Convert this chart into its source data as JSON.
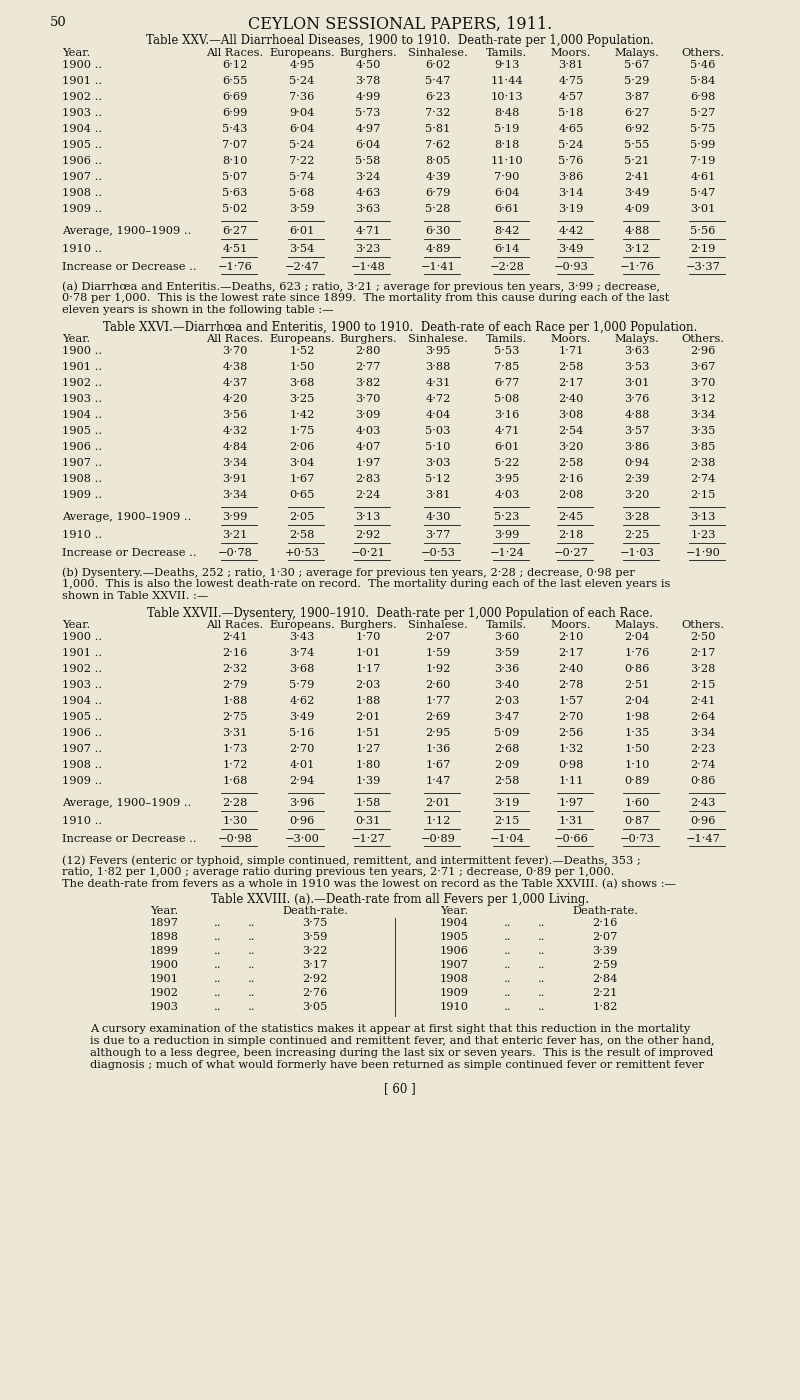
{
  "bg_color": "#ede8d5",
  "text_color": "#111111",
  "page_number": "50",
  "header": "CEYLON SESSIONAL PAPERS, 1911.",
  "table25_title": "Table XXV.—All Diarrhoeal Diseases, 1900 to 1910.  Death-rate per 1,000 Population.",
  "table25_headers": [
    "Year.",
    "All Races.",
    "Europeans.",
    "Burghers.",
    "Sinhalese.",
    "Tamils.",
    "Moors.",
    "Malays.",
    "Others."
  ],
  "table25_rows": [
    [
      "1900 ..",
      "6·12",
      "4·95",
      "4·50",
      "6·02",
      "9·13",
      "3·81",
      "5·67",
      "5·46"
    ],
    [
      "1901 ..",
      "6·55",
      "5·24",
      "3·78",
      "5·47",
      "11·44",
      "4·75",
      "5·29",
      "5·84"
    ],
    [
      "1902 ..",
      "6·69",
      "7·36",
      "4·99",
      "6·23",
      "10·13",
      "4·57",
      "3·87",
      "6·98"
    ],
    [
      "1903 ..",
      "6·99",
      "9·04",
      "5·73",
      "7·32",
      "8·48",
      "5·18",
      "6·27",
      "5·27"
    ],
    [
      "1904 ..",
      "5·43",
      "6·04",
      "4·97",
      "5·81",
      "5·19",
      "4·65",
      "6·92",
      "5·75"
    ],
    [
      "1905 ..",
      "7·07",
      "5·24",
      "6·04",
      "7·62",
      "8·18",
      "5·24",
      "5·55",
      "5·99"
    ],
    [
      "1906 ..",
      "8·10",
      "7·22",
      "5·58",
      "8·05",
      "11·10",
      "5·76",
      "5·21",
      "7·19"
    ],
    [
      "1907 ..",
      "5·07",
      "5·74",
      "3·24",
      "4·39",
      "7·90",
      "3·86",
      "2·41",
      "4·61"
    ],
    [
      "1908 ..",
      "5·63",
      "5·68",
      "4·63",
      "6·79",
      "6·04",
      "3·14",
      "3·49",
      "5·47"
    ],
    [
      "1909 ..",
      "5·02",
      "3·59",
      "3·63",
      "5·28",
      "6·61",
      "3·19",
      "4·09",
      "3·01"
    ]
  ],
  "table25_avg": [
    "Average, 1900–1909 ..",
    "6·27",
    "6·01",
    "4·71",
    "6·30",
    "8·42",
    "4·42",
    "4·88",
    "5·56"
  ],
  "table25_1910": [
    "1910 ..",
    "4·51",
    "3·54",
    "3·23",
    "4·89",
    "6·14",
    "3·49",
    "3·12",
    "2·19"
  ],
  "table25_inc": [
    "Increase or Decrease ..",
    "−1·76",
    "−2·47",
    "−1·48",
    "−1·41",
    "−2·28",
    "−0·93",
    "−1·76",
    "−3·37"
  ],
  "para_a": "(a) Diarrhœa and Enteritis.—Deaths, 623 ; ratio, 3·21 ; average for previous ten years, 3·99 ; decrease,\n0·78 per 1,000.  This is the lowest rate since 1899.  The mortality from this cause during each of the last\neleven years is shown in the following table :—",
  "table26_title": "Table XXVI.—Diarrhœa and Enteritis, 1900 to 1910.  Death-rate of each Race per 1,000 Population.",
  "table26_headers": [
    "Year.",
    "All Races.",
    "Europeans.",
    "Burghers.",
    "Sinhalese.",
    "Tamils.",
    "Moors.",
    "Malays.",
    "Others."
  ],
  "table26_rows": [
    [
      "1900 ..",
      "3·70",
      "1·52",
      "2·80",
      "3·95",
      "5·53",
      "1·71",
      "3·63",
      "2·96"
    ],
    [
      "1901 ..",
      "4·38",
      "1·50",
      "2·77",
      "3·88",
      "7·85",
      "2·58",
      "3·53",
      "3·67"
    ],
    [
      "1902 ..",
      "4·37",
      "3·68",
      "3·82",
      "4·31",
      "6·77",
      "2·17",
      "3·01",
      "3·70"
    ],
    [
      "1903 ..",
      "4·20",
      "3·25",
      "3·70",
      "4·72",
      "5·08",
      "2·40",
      "3·76",
      "3·12"
    ],
    [
      "1904 ..",
      "3·56",
      "1·42",
      "3·09",
      "4·04",
      "3·16",
      "3·08",
      "4·88",
      "3·34"
    ],
    [
      "1905 ..",
      "4·32",
      "1·75",
      "4·03",
      "5·03",
      "4·71",
      "2·54",
      "3·57",
      "3·35"
    ],
    [
      "1906 ..",
      "4·84",
      "2·06",
      "4·07",
      "5·10",
      "6·01",
      "3·20",
      "3·86",
      "3·85"
    ],
    [
      "1907 ..",
      "3·34",
      "3·04",
      "1·97",
      "3·03",
      "5·22",
      "2·58",
      "0·94",
      "2·38"
    ],
    [
      "1908 ..",
      "3·91",
      "1·67",
      "2·83",
      "5·12",
      "3·95",
      "2·16",
      "2·39",
      "2·74"
    ],
    [
      "1909 ..",
      "3·34",
      "0·65",
      "2·24",
      "3·81",
      "4·03",
      "2·08",
      "3·20",
      "2·15"
    ]
  ],
  "table26_avg": [
    "Average, 1900–1909 ..",
    "3·99",
    "2·05",
    "3·13",
    "4·30",
    "5·23",
    "2·45",
    "3·28",
    "3·13"
  ],
  "table26_1910": [
    "1910 ..",
    "3·21",
    "2·58",
    "2·92",
    "3·77",
    "3·99",
    "2·18",
    "2·25",
    "1·23"
  ],
  "table26_inc": [
    "Increase or Decrease ..",
    "−0·78",
    "+0·53",
    "−0·21",
    "−0·53",
    "−1·24",
    "−0·27",
    "−1·03",
    "−1·90"
  ],
  "para_b": "(b) Dysentery.—Deaths, 252 ; ratio, 1·30 ; average for previous ten years, 2·28 ; decrease, 0·98 per\n1,000.  This is also the lowest death-rate on record.  The mortality during each of the last eleven years is\nshown in Table XXVII. :—",
  "table27_title": "Table XXVII.—Dysentery, 1900–1910.  Death-rate per 1,000 Population of each Race.",
  "table27_headers": [
    "Year.",
    "All Races.",
    "Europeans.",
    "Burghers.",
    "Sinhalese.",
    "Tamils.",
    "Moors.",
    "Malays.",
    "Others."
  ],
  "table27_rows": [
    [
      "1900 ..",
      "2·41",
      "3·43",
      "1·70",
      "2·07",
      "3·60",
      "2·10",
      "2·04",
      "2·50"
    ],
    [
      "1901 ..",
      "2·16",
      "3·74",
      "1·01",
      "1·59",
      "3·59",
      "2·17",
      "1·76",
      "2·17"
    ],
    [
      "1902 ..",
      "2·32",
      "3·68",
      "1·17",
      "1·92",
      "3·36",
      "2·40",
      "0·86",
      "3·28"
    ],
    [
      "1903 ..",
      "2·79",
      "5·79",
      "2·03",
      "2·60",
      "3·40",
      "2·78",
      "2·51",
      "2·15"
    ],
    [
      "1904 ..",
      "1·88",
      "4·62",
      "1·88",
      "1·77",
      "2·03",
      "1·57",
      "2·04",
      "2·41"
    ],
    [
      "1905 ..",
      "2·75",
      "3·49",
      "2·01",
      "2·69",
      "3·47",
      "2·70",
      "1·98",
      "2·64"
    ],
    [
      "1906 ..",
      "3·31",
      "5·16",
      "1·51",
      "2·95",
      "5·09",
      "2·56",
      "1·35",
      "3·34"
    ],
    [
      "1907 ..",
      "1·73",
      "2·70",
      "1·27",
      "1·36",
      "2·68",
      "1·32",
      "1·50",
      "2·23"
    ],
    [
      "1908 ..",
      "1·72",
      "4·01",
      "1·80",
      "1·67",
      "2·09",
      "0·98",
      "1·10",
      "2·74"
    ],
    [
      "1909 ..",
      "1·68",
      "2·94",
      "1·39",
      "1·47",
      "2·58",
      "1·11",
      "0·89",
      "0·86"
    ]
  ],
  "table27_avg": [
    "Average, 1900–1909 ..",
    "2·28",
    "3·96",
    "1·58",
    "2·01",
    "3·19",
    "1·97",
    "1·60",
    "2·43"
  ],
  "table27_1910": [
    "1910 ..",
    "1·30",
    "0·96",
    "0·31",
    "1·12",
    "2·15",
    "1·31",
    "0·87",
    "0·96"
  ],
  "table27_inc": [
    "Increase or Decrease ..",
    "−0·98",
    "−3·00",
    "−1·27",
    "−0·89",
    "−1·04",
    "−0·66",
    "−0·73",
    "−1·47"
  ],
  "para_12": "(12) Fevers (enteric or typhoid, simple continued, remittent, and intermittent fever).—Deaths, 353 ;",
  "para_12b": "ratio, 1·82 per 1,000 ; average ratio during previous ten years, 2·71 ; decrease, 0·89 per 1,000.",
  "para_12c": "The death-rate from fevers as a whole in 1910 was the lowest on record as the Table XXVIII. (a) shows :—",
  "table28_title": "Table XXVIII. (a).—Death-rate from all Fevers per 1,000 Living.",
  "table28_col1_header": "Year.",
  "table28_col2_header": "Death-rate.",
  "table28_col3_header": "Year.",
  "table28_col4_header": "Death-rate.",
  "table28_left": [
    [
      "1897",
      "..",
      "..",
      "3·75"
    ],
    [
      "1898",
      "..",
      "..",
      "3·59"
    ],
    [
      "1899",
      "..",
      "..",
      "3·22"
    ],
    [
      "1900",
      "..",
      "..",
      "3·17"
    ],
    [
      "1901",
      "..",
      "..",
      "2·92"
    ],
    [
      "1902",
      "..",
      "..",
      "2·76"
    ],
    [
      "1903",
      "..",
      "..",
      "3·05"
    ]
  ],
  "table28_right": [
    [
      "1904",
      "..",
      "..",
      "2·16"
    ],
    [
      "1905",
      "..",
      "..",
      "2·07"
    ],
    [
      "1906",
      "..",
      "..",
      "3·39"
    ],
    [
      "1907",
      "..",
      "..",
      "2·59"
    ],
    [
      "1908",
      "..",
      "..",
      "2·84"
    ],
    [
      "1909",
      "..",
      "..",
      "2·21"
    ],
    [
      "1910",
      "..",
      "..",
      "1·82"
    ]
  ],
  "para_final_lines": [
    "A cursory examination of the statistics makes it appear at first sight that this reduction in the mortality",
    "is due to a reduction in simple continued and remittent fever, and that enteric fever has, on the other hand,",
    "although to a less degree, been increasing during the last six or seven years.  This is the result of improved",
    "diagnosis ; much of what would formerly have been returned as simple continued fever or remittent fever"
  ],
  "footer": "[ 60 ]"
}
